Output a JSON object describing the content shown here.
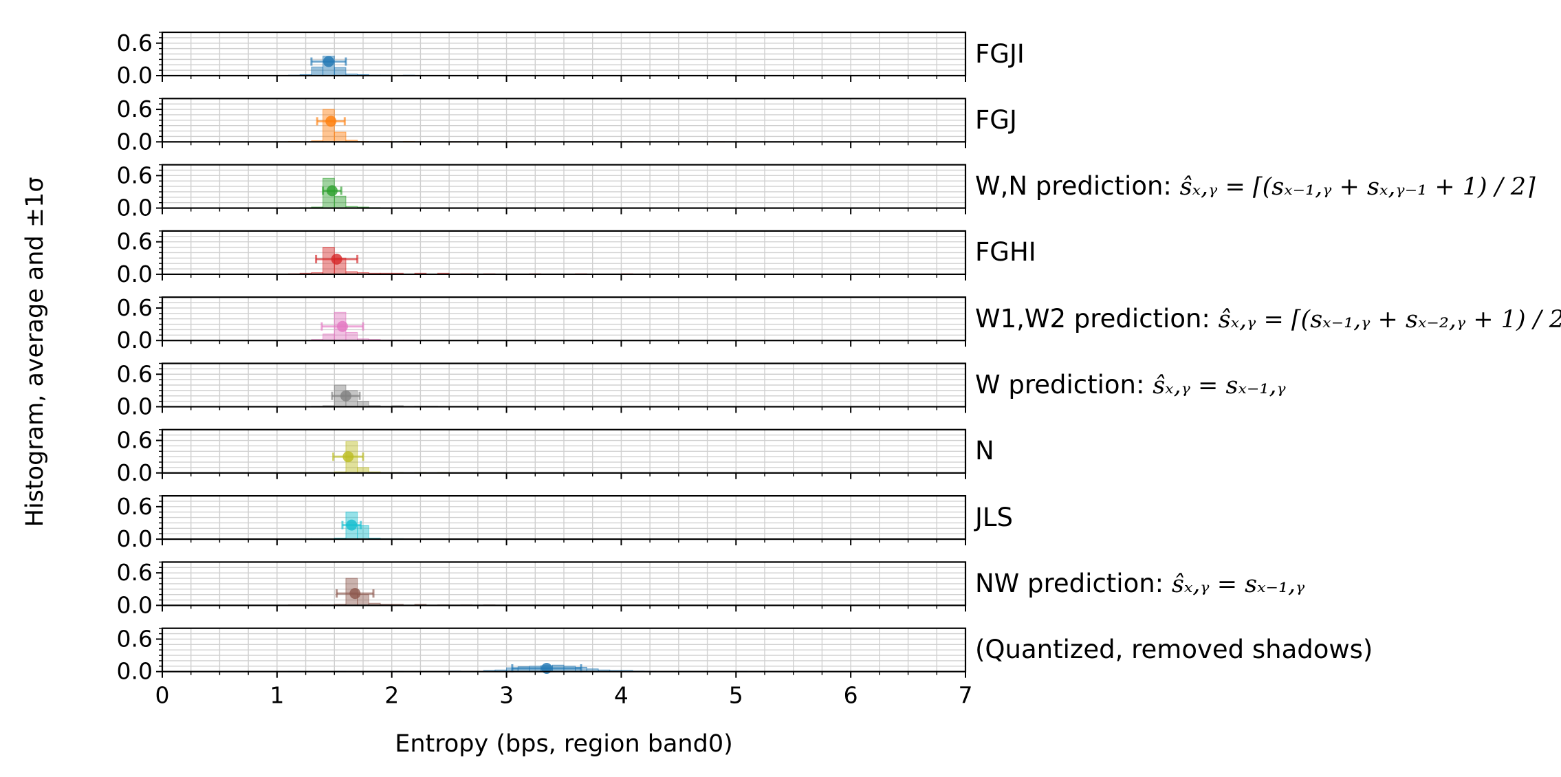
{
  "chart_data": {
    "type": "histogram",
    "xlabel": "Entropy (bps, region band0)",
    "ylabel": "Histogram, average and ±1σ",
    "xlim": [
      0,
      7
    ],
    "ylim": [
      0,
      0.8
    ],
    "x_ticks": [
      "0",
      "1",
      "2",
      "3",
      "4",
      "5",
      "6",
      "7"
    ],
    "y_ticks": [
      "0.0",
      "0.6"
    ],
    "grid": true,
    "colors": {
      "blue": "#1f77b4",
      "orange": "#ff7f0e",
      "green": "#2ca02c",
      "red": "#d62728",
      "pink": "#e377c2",
      "gray": "#7f7f7f",
      "olive": "#bcbd22",
      "cyan": "#17becf",
      "brown": "#8c564b"
    },
    "panels": [
      {
        "label": "FGJI",
        "color": "#1f77b4",
        "mean": 1.45,
        "std": 0.15,
        "mean_height": 0.26,
        "bins": [
          [
            1.1,
            0.01
          ],
          [
            1.2,
            0.02
          ],
          [
            1.3,
            0.16
          ],
          [
            1.4,
            0.36
          ],
          [
            1.5,
            0.15
          ],
          [
            1.6,
            0.03
          ],
          [
            1.7,
            0.02
          ],
          [
            1.8,
            0.01
          ],
          [
            1.9,
            0.01
          ],
          [
            2.1,
            0.01
          ]
        ]
      },
      {
        "label": "FGJ",
        "color": "#ff7f0e",
        "mean": 1.47,
        "std": 0.12,
        "mean_height": 0.38,
        "bins": [
          [
            1.1,
            0.01
          ],
          [
            1.3,
            0.02
          ],
          [
            1.4,
            0.6
          ],
          [
            1.5,
            0.18
          ],
          [
            1.6,
            0.03
          ],
          [
            1.7,
            0.01
          ],
          [
            1.9,
            0.01
          ],
          [
            2.1,
            0.01
          ],
          [
            2.5,
            0.005
          ],
          [
            3.0,
            0.005
          ],
          [
            4.0,
            0.005
          ],
          [
            4.8,
            0.005
          ]
        ]
      },
      {
        "label": "W,N prediction: ",
        "math": "ŝₓ,ᵧ = ⌈(sₓ₋₁,ᵧ + sₓ,ᵧ₋₁ + 1) / 2⌉",
        "color": "#2ca02c",
        "mean": 1.48,
        "std": 0.08,
        "mean_height": 0.32,
        "bins": [
          [
            1.2,
            0.01
          ],
          [
            1.3,
            0.02
          ],
          [
            1.4,
            0.55
          ],
          [
            1.5,
            0.22
          ],
          [
            1.6,
            0.03
          ],
          [
            1.7,
            0.02
          ],
          [
            1.8,
            0.01
          ]
        ]
      },
      {
        "label": "FGHI",
        "color": "#d62728",
        "mean": 1.52,
        "std": 0.18,
        "mean_height": 0.28,
        "bins": [
          [
            1.1,
            0.01
          ],
          [
            1.2,
            0.02
          ],
          [
            1.3,
            0.03
          ],
          [
            1.4,
            0.5
          ],
          [
            1.5,
            0.3
          ],
          [
            1.6,
            0.05
          ],
          [
            1.7,
            0.03
          ],
          [
            1.8,
            0.02
          ],
          [
            1.9,
            0.02
          ],
          [
            2.0,
            0.02
          ],
          [
            2.2,
            0.02
          ],
          [
            2.4,
            0.02
          ],
          [
            2.6,
            0.01
          ],
          [
            2.8,
            0.01
          ],
          [
            3.2,
            0.01
          ],
          [
            3.6,
            0.01
          ],
          [
            4.0,
            0.01
          ],
          [
            4.4,
            0.005
          ],
          [
            4.8,
            0.005
          ]
        ]
      },
      {
        "label": "W1,W2 prediction: ",
        "math": "ŝₓ,ᵧ = ⌈(sₓ₋₁,ᵧ + sₓ₋₂,ᵧ + 1) / 2⌉",
        "color": "#e377c2",
        "mean": 1.57,
        "std": 0.18,
        "mean_height": 0.26,
        "bins": [
          [
            1.3,
            0.02
          ],
          [
            1.4,
            0.12
          ],
          [
            1.5,
            0.52
          ],
          [
            1.6,
            0.15
          ],
          [
            1.7,
            0.03
          ],
          [
            1.8,
            0.02
          ],
          [
            1.9,
            0.01
          ],
          [
            2.0,
            0.01
          ],
          [
            2.1,
            0.01
          ]
        ]
      },
      {
        "label": "W prediction: ",
        "math": "ŝₓ,ᵧ = sₓ₋₁,ᵧ",
        "color": "#7f7f7f",
        "mean": 1.6,
        "std": 0.12,
        "mean_height": 0.2,
        "bins": [
          [
            1.3,
            0.01
          ],
          [
            1.4,
            0.02
          ],
          [
            1.5,
            0.4
          ],
          [
            1.6,
            0.3
          ],
          [
            1.7,
            0.1
          ],
          [
            1.8,
            0.02
          ],
          [
            1.9,
            0.01
          ],
          [
            2.0,
            0.02
          ],
          [
            2.2,
            0.01
          ],
          [
            2.3,
            0.01
          ]
        ]
      },
      {
        "label": "N",
        "color": "#bcbd22",
        "mean": 1.62,
        "std": 0.13,
        "mean_height": 0.3,
        "bins": [
          [
            1.2,
            0.01
          ],
          [
            1.3,
            0.01
          ],
          [
            1.4,
            0.01
          ],
          [
            1.5,
            0.02
          ],
          [
            1.6,
            0.58
          ],
          [
            1.7,
            0.1
          ],
          [
            1.8,
            0.02
          ],
          [
            1.9,
            0.01
          ],
          [
            2.0,
            0.01
          ],
          [
            2.2,
            0.01
          ],
          [
            2.4,
            0.01
          ]
        ]
      },
      {
        "label": "JLS",
        "color": "#17becf",
        "mean": 1.65,
        "std": 0.08,
        "mean_height": 0.26,
        "bins": [
          [
            1.2,
            0.01
          ],
          [
            1.3,
            0.01
          ],
          [
            1.4,
            0.01
          ],
          [
            1.5,
            0.02
          ],
          [
            1.6,
            0.5
          ],
          [
            1.7,
            0.25
          ],
          [
            1.8,
            0.02
          ],
          [
            1.9,
            0.01
          ],
          [
            2.0,
            0.01
          ]
        ]
      },
      {
        "label": "NW prediction: ",
        "math": "ŝₓ,ᵧ = sₓ₋₁,ᵧ",
        "color": "#8c564b",
        "mean": 1.68,
        "std": 0.16,
        "mean_height": 0.22,
        "bins": [
          [
            1.1,
            0.01
          ],
          [
            1.2,
            0.01
          ],
          [
            1.3,
            0.01
          ],
          [
            1.4,
            0.01
          ],
          [
            1.5,
            0.02
          ],
          [
            1.6,
            0.5
          ],
          [
            1.7,
            0.2
          ],
          [
            1.8,
            0.04
          ],
          [
            1.9,
            0.02
          ],
          [
            2.0,
            0.02
          ],
          [
            2.2,
            0.02
          ],
          [
            2.4,
            0.01
          ],
          [
            2.6,
            0.01
          ],
          [
            2.8,
            0.01
          ]
        ]
      },
      {
        "label": "(Quantized, removed shadows)",
        "color": "#1f77b4",
        "mean": 3.35,
        "std": 0.3,
        "mean_height": 0.06,
        "bins": [
          [
            1.1,
            0.005
          ],
          [
            1.5,
            0.005
          ],
          [
            2.0,
            0.005
          ],
          [
            2.5,
            0.01
          ],
          [
            2.8,
            0.02
          ],
          [
            2.9,
            0.03
          ],
          [
            3.0,
            0.07
          ],
          [
            3.1,
            0.09
          ],
          [
            3.2,
            0.1
          ],
          [
            3.3,
            0.11
          ],
          [
            3.4,
            0.12
          ],
          [
            3.5,
            0.1
          ],
          [
            3.6,
            0.08
          ],
          [
            3.7,
            0.05
          ],
          [
            3.8,
            0.03
          ],
          [
            3.9,
            0.02
          ],
          [
            4.0,
            0.02
          ],
          [
            4.1,
            0.01
          ],
          [
            4.2,
            0.005
          ],
          [
            4.5,
            0.005
          ],
          [
            5.0,
            0.005
          ]
        ]
      }
    ]
  }
}
